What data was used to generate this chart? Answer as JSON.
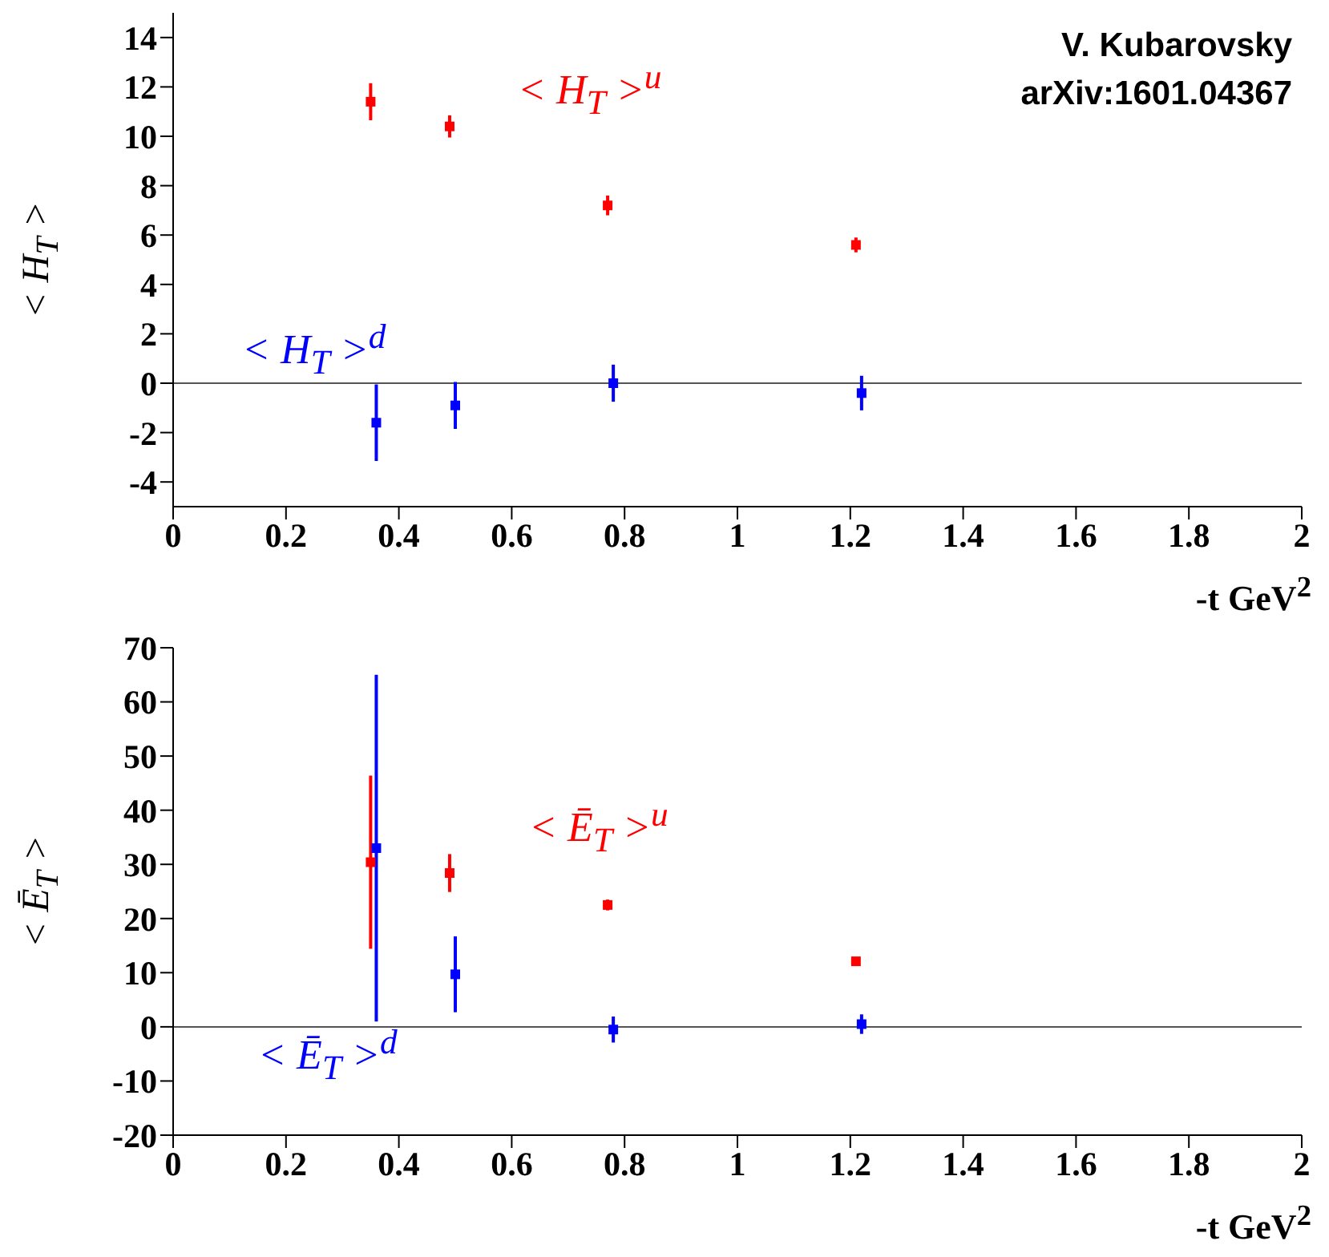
{
  "chart_data": [
    {
      "type": "scatter",
      "ylabel": "< H$_{T}$ >",
      "xlabel": "-t GeV$^{2}$",
      "annotations": [
        "V. Kubarovsky",
        "arXiv:1601.04367"
      ],
      "marker": "square",
      "legend": false,
      "grid": false,
      "xlim": [
        0,
        2
      ],
      "xticks": [
        0,
        0.2,
        0.4,
        0.6,
        0.8,
        1,
        1.2,
        1.4,
        1.6,
        1.8,
        2
      ],
      "ylim": [
        -5,
        15
      ],
      "yticks": [
        -4,
        -2,
        0,
        2,
        4,
        6,
        8,
        10,
        12,
        14
      ],
      "ref_lines": [
        {
          "axis": "y",
          "value": 0,
          "color": "#555555"
        }
      ],
      "series": [
        {
          "name": "< H$_{T}$ >$^{u}$",
          "color": "#ff0000",
          "x": [
            0.35,
            0.49,
            0.77,
            1.21
          ],
          "values": [
            11.4,
            10.4,
            7.2,
            5.6
          ],
          "errors": [
            0.75,
            0.45,
            0.4,
            0.3
          ]
        },
        {
          "name": "< H$_{T}$ >$^{d}$",
          "color": "#0000ff",
          "x": [
            0.36,
            0.5,
            0.78,
            1.22
          ],
          "values": [
            -1.6,
            -0.9,
            0,
            -0.4
          ],
          "errors": [
            1.55,
            0.95,
            0.75,
            0.7
          ]
        }
      ]
    },
    {
      "type": "scatter",
      "ylabel": "< Ē$_{T}$ >",
      "xlabel": "-t GeV$^{2}$",
      "marker": "square",
      "legend": false,
      "grid": false,
      "xlim": [
        0,
        2
      ],
      "xticks": [
        0,
        0.2,
        0.4,
        0.6,
        0.8,
        1,
        1.2,
        1.4,
        1.6,
        1.8,
        2
      ],
      "ylim": [
        -20,
        70
      ],
      "yticks": [
        -20,
        -10,
        0,
        10,
        20,
        30,
        40,
        50,
        60,
        70
      ],
      "ref_lines": [
        {
          "axis": "y",
          "value": 0,
          "color": "#555555"
        }
      ],
      "series": [
        {
          "name": "< Ē$_{T}$ >$^{u}$",
          "color": "#ff0000",
          "x": [
            0.35,
            0.49,
            0.77,
            1.21
          ],
          "values": [
            30.4,
            28.4,
            22.5,
            12.1
          ],
          "errors": [
            16,
            3.5,
            1,
            0.7
          ]
        },
        {
          "name": "< Ē$_{T}$ >$^{d}$",
          "color": "#0000ff",
          "x": [
            0.36,
            0.5,
            0.78,
            1.22
          ],
          "values": [
            33,
            9.7,
            -0.5,
            0.5
          ],
          "errors": [
            32,
            7,
            2.4,
            1.8
          ]
        }
      ]
    }
  ]
}
